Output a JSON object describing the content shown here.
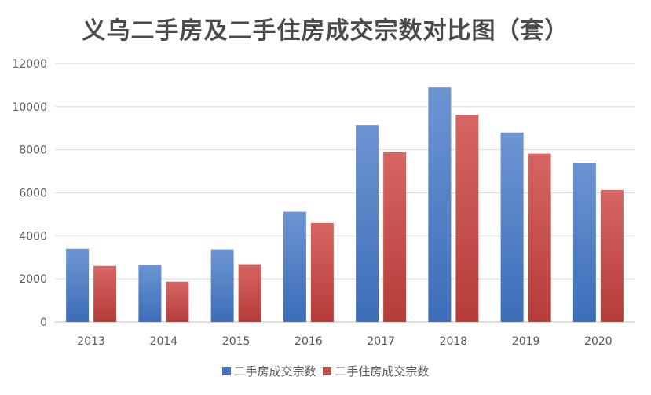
{
  "chart_data": {
    "type": "bar",
    "title": "义乌二手房及二手住房成交宗数对比图（套）",
    "categories": [
      "2013",
      "2014",
      "2015",
      "2016",
      "2017",
      "2018",
      "2019",
      "2020"
    ],
    "series": [
      {
        "name": "二手房成交宗数",
        "color": "#4472C4",
        "values": [
          3400,
          2650,
          3370,
          5120,
          9150,
          10900,
          8800,
          7400
        ]
      },
      {
        "name": "二手住房成交宗数",
        "color": "#C0504D",
        "values": [
          2600,
          1870,
          2680,
          4600,
          7880,
          9620,
          7820,
          6130
        ]
      }
    ],
    "ylim": [
      0,
      12000
    ],
    "yticks": [
      0,
      2000,
      4000,
      6000,
      8000,
      10000,
      12000
    ],
    "grid": true,
    "legend_position": "bottom"
  }
}
